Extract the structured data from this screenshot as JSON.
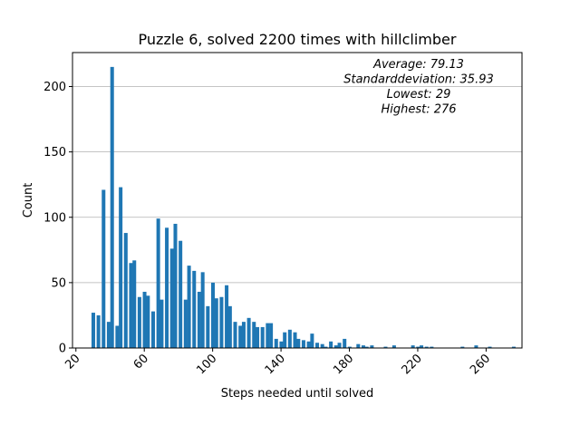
{
  "chart_data": {
    "type": "bar",
    "title": "Puzzle 6, solved 2200 times with hillclimber",
    "xlabel": "Steps needed until solved",
    "ylabel": "Count",
    "xlim": [
      18,
      281
    ],
    "ylim": [
      0,
      226
    ],
    "xticks": [
      20,
      60,
      100,
      140,
      180,
      220,
      260
    ],
    "yticks": [
      0,
      50,
      100,
      150,
      200
    ],
    "grid": "horizontal",
    "bar_color": "#1f77b4",
    "annotations": [
      "Average: 79.13",
      "Standarddeviation: 35.93",
      "Lowest: 29",
      "Highest: 276"
    ],
    "x": [
      29,
      32,
      35,
      38,
      40,
      43,
      45,
      48,
      51,
      53,
      56,
      59,
      61,
      64,
      67,
      69,
      72,
      75,
      77,
      80,
      83,
      85,
      88,
      91,
      93,
      96,
      99,
      101,
      104,
      107,
      109,
      112,
      115,
      117,
      120,
      123,
      125,
      128,
      131,
      133,
      136,
      139,
      141,
      144,
      147,
      149,
      152,
      155,
      157,
      160,
      163,
      165,
      168,
      171,
      173,
      176,
      179,
      181,
      184,
      187,
      189,
      192,
      195,
      197,
      200,
      203,
      205,
      208,
      211,
      213,
      216,
      219,
      221,
      224,
      227,
      229,
      232,
      235,
      237,
      240,
      243,
      245,
      248,
      251,
      253,
      256,
      259,
      261,
      264,
      267,
      269,
      272,
      275
    ],
    "values": [
      27,
      25,
      121,
      20,
      215,
      17,
      123,
      88,
      65,
      67,
      39,
      43,
      40,
      28,
      99,
      37,
      92,
      76,
      95,
      82,
      37,
      63,
      59,
      43,
      58,
      32,
      50,
      38,
      39,
      48,
      32,
      20,
      17,
      20,
      23,
      20,
      16,
      16,
      19,
      19,
      7,
      5,
      12,
      14,
      12,
      7,
      6,
      5,
      11,
      4,
      3,
      1,
      5,
      2,
      4,
      7,
      1,
      0,
      3,
      2,
      1,
      2,
      0,
      0,
      1,
      0,
      2,
      0,
      0,
      0,
      2,
      1,
      2,
      1,
      1,
      0,
      0,
      0,
      0,
      0,
      0,
      1,
      0,
      0,
      2,
      0,
      0,
      1,
      0,
      0,
      0,
      0,
      1
    ]
  }
}
